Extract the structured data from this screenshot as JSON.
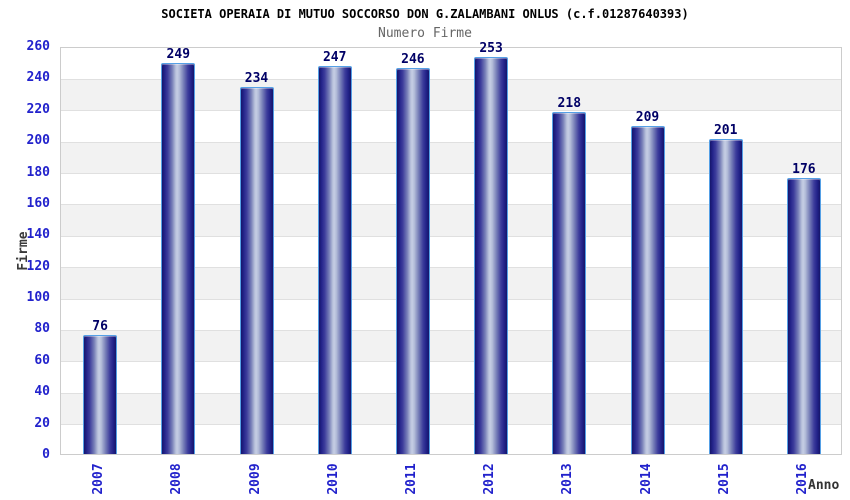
{
  "header": {
    "title": "SOCIETA OPERAIA DI MUTUO SOCCORSO DON G.ZALAMBANI ONLUS (c.f.01287640393)",
    "subtitle": "Numero Firme"
  },
  "chart_data": {
    "type": "bar",
    "title": "SOCIETA OPERAIA DI MUTUO SOCCORSO DON G.ZALAMBANI ONLUS (c.f.01287640393)",
    "subtitle": "Numero Firme",
    "categories": [
      "2007",
      "2008",
      "2009",
      "2010",
      "2011",
      "2012",
      "2013",
      "2014",
      "2015",
      "2016"
    ],
    "values": [
      76,
      249,
      234,
      247,
      246,
      253,
      218,
      209,
      201,
      176
    ],
    "xlabel": "Anno",
    "ylabel": "Firme",
    "ylim": [
      0,
      260
    ],
    "ytick_step": 20,
    "grid": "horizontal-bands-alternating",
    "legend": "none",
    "colors": {
      "tick_label": "#2222cc",
      "value_label": "#000066",
      "title": "#000000",
      "subtitle": "#666666",
      "axis_title": "#3a3a3a",
      "bar_border": "#55a0e6",
      "bar_dark": "#15156b",
      "bar_highlight": "#c6cee4",
      "band_gray": "#f2f2f2",
      "grid_line": "#e0e0e0",
      "frame": "#cccccc",
      "background": "#ffffff"
    }
  }
}
